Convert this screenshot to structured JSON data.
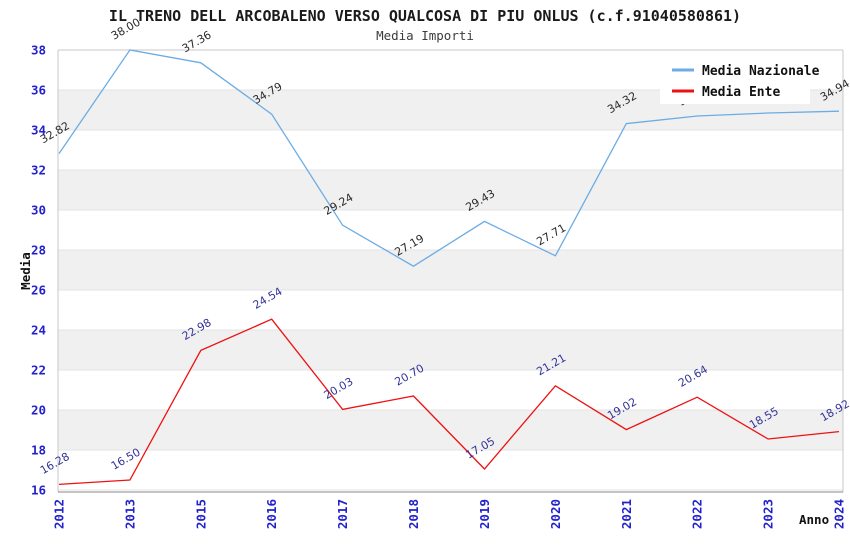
{
  "chart_data": {
    "type": "line",
    "title": "IL TRENO DELL ARCOBALENO VERSO QUALCOSA DI PIU ONLUS (c.f.91040580861)",
    "subtitle": "Media Importi",
    "xlabel": "Anno",
    "ylabel": "Media",
    "categories": [
      "2012",
      "2013",
      "2015",
      "2016",
      "2017",
      "2018",
      "2019",
      "2020",
      "2021",
      "2022",
      "2023",
      "2024"
    ],
    "series": [
      {
        "name": "Media Nazionale",
        "color": "#6cace4",
        "label_color": "#2a2a2a",
        "values": [
          32.82,
          38.0,
          37.36,
          34.79,
          29.24,
          27.19,
          29.43,
          27.71,
          34.32,
          34.7,
          34.85,
          34.94
        ]
      },
      {
        "name": "Media Ente",
        "color": "#ee1111",
        "label_color": "#333399",
        "values": [
          16.28,
          16.5,
          22.98,
          24.54,
          20.03,
          20.7,
          17.05,
          21.21,
          19.02,
          20.64,
          18.55,
          18.92
        ]
      }
    ],
    "ylim": [
      16,
      38
    ],
    "ytick_step": 2,
    "grid": "horizontal",
    "band_color": "#f0f0f0",
    "gridline_color": "#e3e3e3",
    "tick_color": "#2222cc",
    "legend_position": "top-right",
    "label_decimals": 2
  }
}
